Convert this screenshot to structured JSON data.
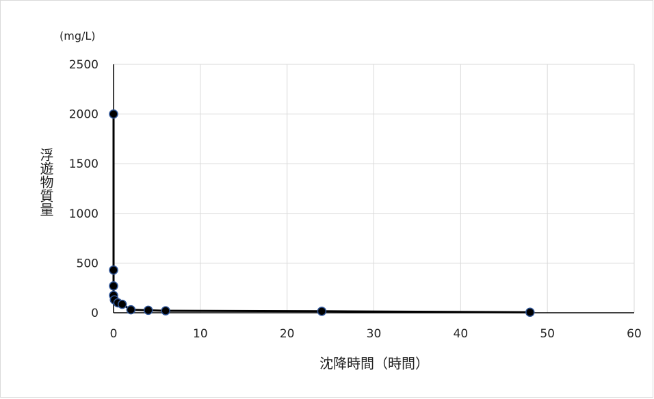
{
  "chart_data": {
    "type": "scatter",
    "title": "",
    "xlabel": "沈降時間（時間）",
    "ylabel": "浮遊物質量",
    "y_unit": "(mg/L)",
    "xlim": [
      0,
      60
    ],
    "ylim": [
      0,
      2500
    ],
    "x_ticks": [
      "0",
      "10",
      "20",
      "30",
      "40",
      "50",
      "60"
    ],
    "y_ticks": [
      "0",
      "500",
      "1000",
      "1500",
      "2000",
      "2500"
    ],
    "grid": true,
    "legend": "none",
    "lines_connected": true,
    "series": [
      {
        "x": [
          0,
          0,
          0,
          0,
          0.1,
          0.5,
          1,
          2,
          4,
          6,
          24,
          48
        ],
        "y": [
          2000,
          430,
          270,
          175,
          130,
          100,
          85,
          30,
          25,
          20,
          15,
          5
        ]
      }
    ],
    "colors": {
      "marker_fill": "#000000",
      "marker_stroke": "#2f5597",
      "line": "#000000",
      "grid": "#d9d9d9"
    }
  }
}
